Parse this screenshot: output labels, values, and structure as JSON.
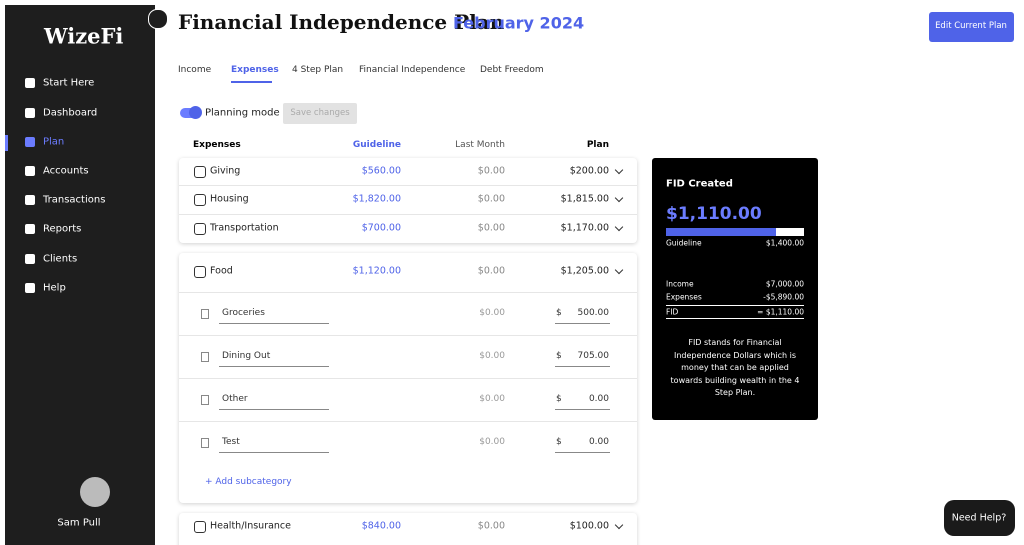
{
  "sidebar": {
    "logo": "WizeFi",
    "nav": [
      "Start Here",
      "Dashboard",
      "Plan",
      "Accounts",
      "Transactions",
      "Reports",
      "Clients",
      "Help"
    ],
    "user": "Sam Pull"
  },
  "header": {
    "title": "Financial Independence Plan",
    "month": "February 2024",
    "button": "Edit Current Plan"
  },
  "tabs": [
    "Income",
    "Expenses",
    "4 Step Plan",
    "Financial Independence",
    "Debt Freedom"
  ],
  "planning": {
    "toggle": "Planning mode",
    "save": "Save changes"
  },
  "table": {
    "columns": [
      "Expenses",
      "Guideline",
      "Last Month",
      "Plan"
    ],
    "rows": [
      [
        "Giving",
        "$560.00",
        "$0.00",
        "$200.00"
      ],
      [
        "Housing",
        "$1,820.00",
        "$0.00",
        "$1,815.00"
      ],
      [
        "Transportation",
        "$700.00",
        "$0.00",
        "$1,170.00"
      ]
    ],
    "food": {
      "row": [
        "Food",
        "$1,120.00",
        "$0.00",
        "$1,205.00"
      ],
      "subcategories": [
        [
          "Groceries",
          "$0.00",
          "$",
          "500.00"
        ],
        [
          "Dining Out",
          "$0.00",
          "$",
          "705.00"
        ],
        [
          "Other",
          "$0.00",
          "$",
          "0.00"
        ],
        [
          "Test",
          "$0.00",
          "$",
          "0.00"
        ]
      ],
      "add": "+ Add subcategory"
    },
    "health": [
      "Health/Insurance",
      "$840.00",
      "$0.00",
      "$100.00"
    ]
  },
  "fid": {
    "title": "FID Created",
    "amount": "$1,110.00",
    "guideline_label": "Guideline",
    "guideline": "$1,400.00",
    "income_label": "Income",
    "income": "$7,000.00",
    "expenses_label": "Expenses",
    "expenses": "-$5,890.00",
    "fid_label": "FID",
    "fid": "= $1,110.00",
    "note": "FID stands for Financial Independence Dollars which is money that can be applied towards building wealth in the 4 Step Plan."
  },
  "help": "Need Help?"
}
